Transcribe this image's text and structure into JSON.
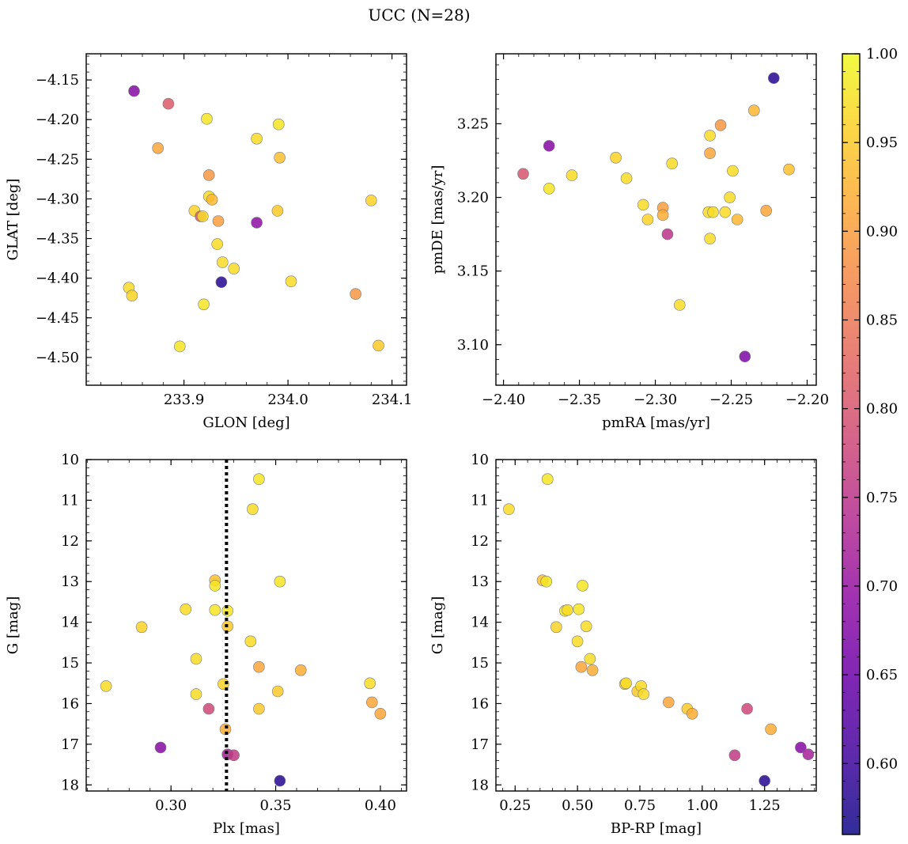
{
  "figure": {
    "title": "UCC (N=28)"
  },
  "colorbar": {
    "range": [
      0.56,
      1.0
    ],
    "ticks": [
      "0.60",
      "0.65",
      "0.70",
      "0.75",
      "0.80",
      "0.85",
      "0.90",
      "0.95",
      "1.00"
    ],
    "tick_values": [
      0.6,
      0.65,
      0.7,
      0.75,
      0.8,
      0.85,
      0.9,
      0.95,
      1.0
    ],
    "colormap": "plasma"
  },
  "chart_data": [
    {
      "type": "scatter",
      "xlabel": "GLON [deg]",
      "ylabel": "GLAT [deg]",
      "xlim": [
        233.806,
        234.114
      ],
      "ylim": [
        -4.535,
        -4.117
      ],
      "xticks": [
        233.9,
        234.0,
        234.1
      ],
      "xticklabels": [
        "233.9",
        "234.0",
        "234.1"
      ],
      "yticks": [
        -4.15,
        -4.2,
        -4.25,
        -4.3,
        -4.35,
        -4.4,
        -4.45,
        -4.5
      ],
      "yticklabels": [
        "−4.15",
        "−4.20",
        "−4.25",
        "−4.30",
        "−4.35",
        "−4.40",
        "−4.45",
        "−4.50"
      ],
      "y_inverted": false,
      "points": [
        {
          "x": 233.852,
          "y": -4.164,
          "c": 0.68
        },
        {
          "x": 233.885,
          "y": -4.18,
          "c": 0.81
        },
        {
          "x": 233.922,
          "y": -4.199,
          "c": 0.98
        },
        {
          "x": 233.991,
          "y": -4.206,
          "c": 0.98
        },
        {
          "x": 233.97,
          "y": -4.224,
          "c": 0.97
        },
        {
          "x": 233.875,
          "y": -4.236,
          "c": 0.91
        },
        {
          "x": 233.992,
          "y": -4.248,
          "c": 0.94
        },
        {
          "x": 233.924,
          "y": -4.27,
          "c": 0.89
        },
        {
          "x": 233.924,
          "y": -4.297,
          "c": 0.97
        },
        {
          "x": 233.927,
          "y": -4.301,
          "c": 0.93
        },
        {
          "x": 234.08,
          "y": -4.302,
          "c": 0.96
        },
        {
          "x": 233.91,
          "y": -4.315,
          "c": 0.96
        },
        {
          "x": 233.99,
          "y": -4.315,
          "c": 0.95
        },
        {
          "x": 233.916,
          "y": -4.322,
          "c": 0.8
        },
        {
          "x": 233.918,
          "y": -4.322,
          "c": 0.97
        },
        {
          "x": 233.933,
          "y": -4.328,
          "c": 0.9
        },
        {
          "x": 233.97,
          "y": -4.33,
          "c": 0.69
        },
        {
          "x": 233.932,
          "y": -4.357,
          "c": 0.97
        },
        {
          "x": 233.937,
          "y": -4.38,
          "c": 0.97
        },
        {
          "x": 233.948,
          "y": -4.388,
          "c": 0.97
        },
        {
          "x": 234.003,
          "y": -4.404,
          "c": 0.97
        },
        {
          "x": 233.936,
          "y": -4.405,
          "c": 0.58
        },
        {
          "x": 233.847,
          "y": -4.412,
          "c": 0.97
        },
        {
          "x": 233.85,
          "y": -4.422,
          "c": 0.96
        },
        {
          "x": 234.065,
          "y": -4.42,
          "c": 0.89
        },
        {
          "x": 233.919,
          "y": -4.433,
          "c": 0.98
        },
        {
          "x": 233.896,
          "y": -4.486,
          "c": 0.98
        },
        {
          "x": 234.087,
          "y": -4.485,
          "c": 0.95
        }
      ]
    },
    {
      "type": "scatter",
      "xlabel": "pmRA [mas/yr]",
      "ylabel": "pmDE [mas/yr]",
      "xlim": [
        -2.405,
        -2.194
      ],
      "ylim": [
        3.0725,
        3.2975
      ],
      "xticks": [
        -2.4,
        -2.35,
        -2.3,
        -2.25,
        -2.2
      ],
      "xticklabels": [
        "−2.40",
        "−2.35",
        "−2.30",
        "−2.25",
        "−2.20"
      ],
      "yticks": [
        3.1,
        3.15,
        3.2,
        3.25
      ],
      "yticklabels": [
        "3.10",
        "3.15",
        "3.20",
        "3.25"
      ],
      "y_inverted": false,
      "points": [
        {
          "x": -2.222,
          "y": 3.281,
          "c": 0.58
        },
        {
          "x": -2.235,
          "y": 3.259,
          "c": 0.93
        },
        {
          "x": -2.257,
          "y": 3.249,
          "c": 0.89
        },
        {
          "x": -2.264,
          "y": 3.242,
          "c": 0.97
        },
        {
          "x": -2.37,
          "y": 3.235,
          "c": 0.68
        },
        {
          "x": -2.264,
          "y": 3.23,
          "c": 0.91
        },
        {
          "x": -2.326,
          "y": 3.227,
          "c": 0.96
        },
        {
          "x": -2.289,
          "y": 3.223,
          "c": 0.97
        },
        {
          "x": -2.212,
          "y": 3.219,
          "c": 0.94
        },
        {
          "x": -2.249,
          "y": 3.218,
          "c": 0.97
        },
        {
          "x": -2.387,
          "y": 3.216,
          "c": 0.8
        },
        {
          "x": -2.355,
          "y": 3.215,
          "c": 0.97
        },
        {
          "x": -2.319,
          "y": 3.213,
          "c": 0.97
        },
        {
          "x": -2.37,
          "y": 3.206,
          "c": 0.98
        },
        {
          "x": -2.251,
          "y": 3.2,
          "c": 0.97
        },
        {
          "x": -2.308,
          "y": 3.195,
          "c": 0.97
        },
        {
          "x": -2.295,
          "y": 3.193,
          "c": 0.9
        },
        {
          "x": -2.227,
          "y": 3.191,
          "c": 0.91
        },
        {
          "x": -2.265,
          "y": 3.19,
          "c": 0.97
        },
        {
          "x": -2.262,
          "y": 3.19,
          "c": 0.97
        },
        {
          "x": -2.254,
          "y": 3.19,
          "c": 0.97
        },
        {
          "x": -2.295,
          "y": 3.188,
          "c": 0.92
        },
        {
          "x": -2.305,
          "y": 3.185,
          "c": 0.96
        },
        {
          "x": -2.246,
          "y": 3.185,
          "c": 0.93
        },
        {
          "x": -2.292,
          "y": 3.175,
          "c": 0.75
        },
        {
          "x": -2.264,
          "y": 3.172,
          "c": 0.97
        },
        {
          "x": -2.284,
          "y": 3.127,
          "c": 0.97
        },
        {
          "x": -2.241,
          "y": 3.092,
          "c": 0.67
        }
      ]
    },
    {
      "type": "scatter",
      "xlabel": "Plx [mas]",
      "ylabel": "G [mag]",
      "xlim": [
        0.2595,
        0.4125
      ],
      "ylim": [
        18.15,
        10.0
      ],
      "xticks": [
        0.3,
        0.35,
        0.4
      ],
      "xticklabels": [
        "0.30",
        "0.35",
        "0.40"
      ],
      "yticks": [
        10,
        11,
        12,
        13,
        14,
        15,
        16,
        17,
        18
      ],
      "yticklabels": [
        "10",
        "11",
        "12",
        "13",
        "14",
        "15",
        "16",
        "17",
        "18"
      ],
      "y_inverted": true,
      "vline": {
        "x": 0.3265,
        "style": "dotted"
      },
      "points": [
        {
          "x": 0.342,
          "y": 10.48,
          "c": 0.98
        },
        {
          "x": 0.339,
          "y": 11.22,
          "c": 0.97
        },
        {
          "x": 0.321,
          "y": 12.97,
          "c": 0.94
        },
        {
          "x": 0.321,
          "y": 13.1,
          "c": 0.98
        },
        {
          "x": 0.352,
          "y": 13.0,
          "c": 0.98
        },
        {
          "x": 0.307,
          "y": 13.68,
          "c": 0.97
        },
        {
          "x": 0.321,
          "y": 13.7,
          "c": 0.98
        },
        {
          "x": 0.327,
          "y": 13.72,
          "c": 0.98
        },
        {
          "x": 0.286,
          "y": 14.12,
          "c": 0.96
        },
        {
          "x": 0.327,
          "y": 14.1,
          "c": 0.95
        },
        {
          "x": 0.338,
          "y": 14.47,
          "c": 0.97
        },
        {
          "x": 0.312,
          "y": 14.9,
          "c": 0.97
        },
        {
          "x": 0.342,
          "y": 15.1,
          "c": 0.91
        },
        {
          "x": 0.362,
          "y": 15.18,
          "c": 0.92
        },
        {
          "x": 0.269,
          "y": 15.57,
          "c": 0.97
        },
        {
          "x": 0.325,
          "y": 15.52,
          "c": 0.96
        },
        {
          "x": 0.395,
          "y": 15.5,
          "c": 0.97
        },
        {
          "x": 0.351,
          "y": 15.7,
          "c": 0.95
        },
        {
          "x": 0.312,
          "y": 15.77,
          "c": 0.97
        },
        {
          "x": 0.396,
          "y": 15.97,
          "c": 0.91
        },
        {
          "x": 0.318,
          "y": 16.13,
          "c": 0.78
        },
        {
          "x": 0.342,
          "y": 16.13,
          "c": 0.95
        },
        {
          "x": 0.4,
          "y": 16.25,
          "c": 0.91
        },
        {
          "x": 0.326,
          "y": 16.63,
          "c": 0.92
        },
        {
          "x": 0.295,
          "y": 17.08,
          "c": 0.68
        },
        {
          "x": 0.327,
          "y": 17.25,
          "c": 0.72
        },
        {
          "x": 0.33,
          "y": 17.27,
          "c": 0.76
        },
        {
          "x": 0.352,
          "y": 17.9,
          "c": 0.58
        }
      ]
    },
    {
      "type": "scatter",
      "xlabel": "BP-RP [mag]",
      "ylabel": "G [mag]",
      "xlim": [
        0.173,
        1.457
      ],
      "ylim": [
        18.15,
        10.0
      ],
      "xticks": [
        0.25,
        0.5,
        0.75,
        1.0,
        1.25
      ],
      "xticklabels": [
        "0.25",
        "0.50",
        "0.75",
        "1.00",
        "1.25"
      ],
      "yticks": [
        10,
        11,
        12,
        13,
        14,
        15,
        16,
        17,
        18
      ],
      "yticklabels": [
        "10",
        "11",
        "12",
        "13",
        "14",
        "15",
        "16",
        "17",
        "18"
      ],
      "y_inverted": true,
      "points": [
        {
          "x": 0.38,
          "y": 10.48,
          "c": 0.98
        },
        {
          "x": 0.225,
          "y": 11.22,
          "c": 0.97
        },
        {
          "x": 0.36,
          "y": 12.97,
          "c": 0.94
        },
        {
          "x": 0.375,
          "y": 13.0,
          "c": 0.98
        },
        {
          "x": 0.52,
          "y": 13.1,
          "c": 0.98
        },
        {
          "x": 0.45,
          "y": 13.72,
          "c": 0.98
        },
        {
          "x": 0.46,
          "y": 13.7,
          "c": 0.97
        },
        {
          "x": 0.505,
          "y": 13.68,
          "c": 0.98
        },
        {
          "x": 0.415,
          "y": 14.12,
          "c": 0.96
        },
        {
          "x": 0.535,
          "y": 14.1,
          "c": 0.97
        },
        {
          "x": 0.5,
          "y": 14.47,
          "c": 0.97
        },
        {
          "x": 0.55,
          "y": 14.9,
          "c": 0.97
        },
        {
          "x": 0.515,
          "y": 15.1,
          "c": 0.91
        },
        {
          "x": 0.56,
          "y": 15.18,
          "c": 0.92
        },
        {
          "x": 0.69,
          "y": 15.52,
          "c": 0.96
        },
        {
          "x": 0.695,
          "y": 15.5,
          "c": 0.97
        },
        {
          "x": 0.74,
          "y": 15.7,
          "c": 0.95
        },
        {
          "x": 0.755,
          "y": 15.57,
          "c": 0.97
        },
        {
          "x": 0.765,
          "y": 15.77,
          "c": 0.97
        },
        {
          "x": 0.865,
          "y": 15.97,
          "c": 0.91
        },
        {
          "x": 0.94,
          "y": 16.13,
          "c": 0.95
        },
        {
          "x": 0.96,
          "y": 16.25,
          "c": 0.92
        },
        {
          "x": 1.18,
          "y": 16.13,
          "c": 0.78
        },
        {
          "x": 1.275,
          "y": 16.63,
          "c": 0.92
        },
        {
          "x": 1.13,
          "y": 17.27,
          "c": 0.76
        },
        {
          "x": 1.395,
          "y": 17.08,
          "c": 0.68
        },
        {
          "x": 1.425,
          "y": 17.25,
          "c": 0.72
        },
        {
          "x": 1.25,
          "y": 17.9,
          "c": 0.58
        }
      ]
    }
  ]
}
